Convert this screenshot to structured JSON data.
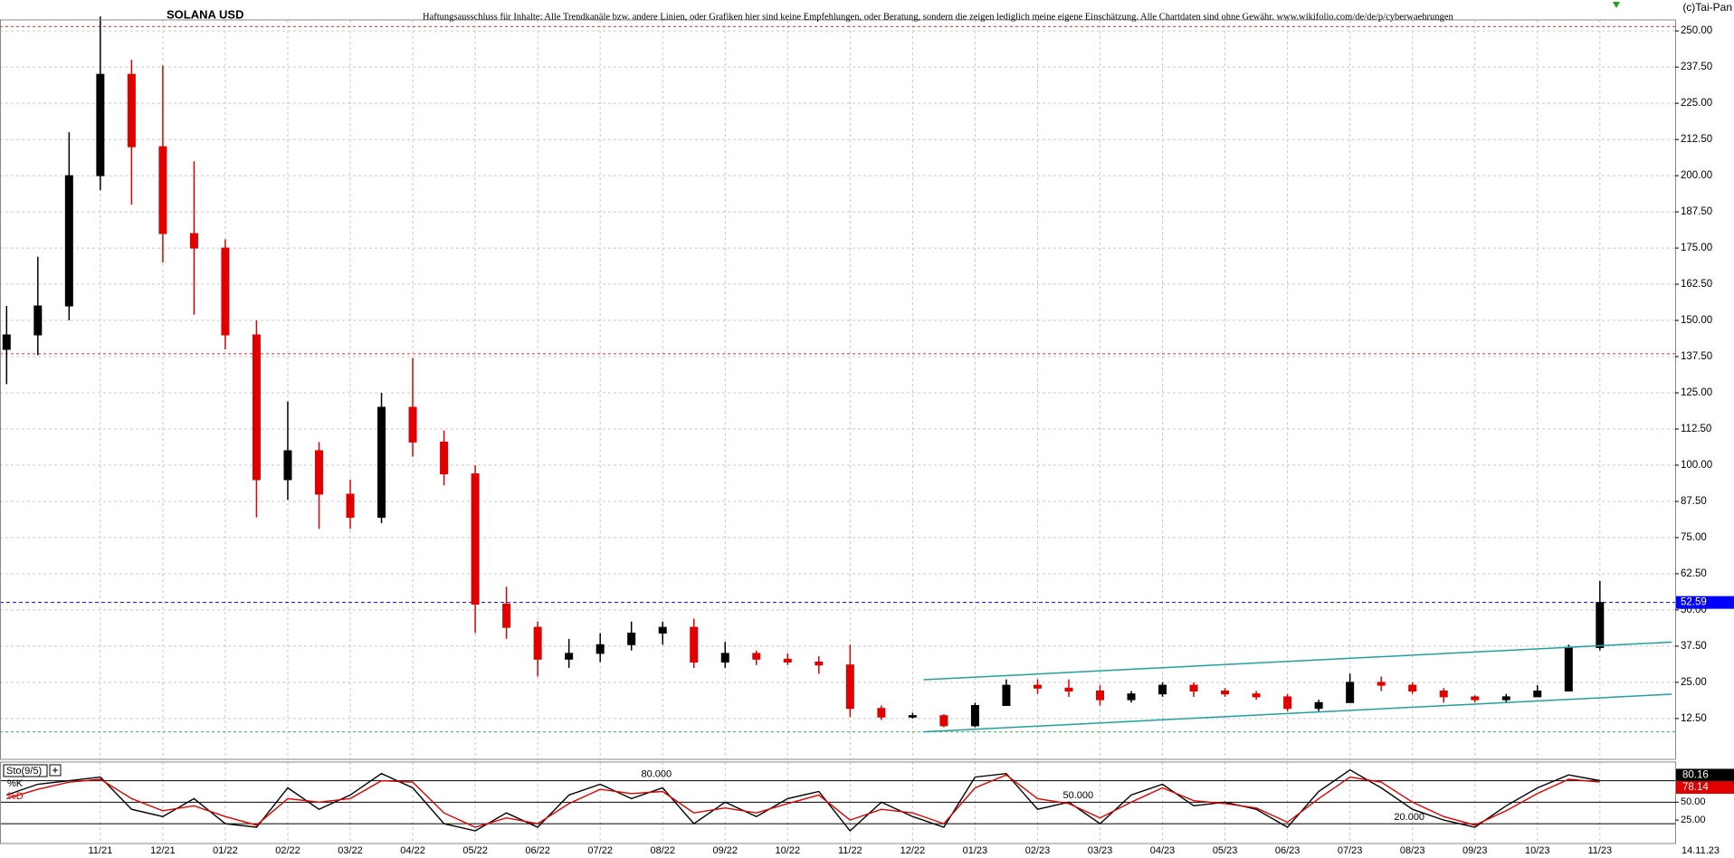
{
  "chart_data": [
    {
      "type": "candlestick",
      "title": "SOLANA USD",
      "subtitle": "Haftungsausschluss für Inhalte: Alle Trendkanäle bzw. andere Linien, oder Grafiken hier sind keine Empfehlungen, oder Beratung, sondern die zeigen lediglich meine eigene Einschätzung. Alle Chartdaten sind ohne Gewähr.  www.wikifolio.com/de/de/p/cyberwaehrungen",
      "credit": "(c)Tai-Pan",
      "last_date": "14.11.23",
      "categories": [
        null,
        null,
        null,
        "11/21",
        null,
        "12/21",
        null,
        "01/22",
        null,
        "02/22",
        null,
        "03/22",
        null,
        "04/22",
        null,
        "05/22",
        null,
        "06/22",
        null,
        "07/22",
        null,
        "08/22",
        null,
        "09/22",
        null,
        "10/22",
        null,
        "11/22",
        null,
        "12/22",
        null,
        "01/23",
        null,
        "02/23",
        null,
        "03/23",
        null,
        "04/23",
        null,
        "05/23",
        null,
        "06/23",
        null,
        "07/23",
        null,
        "08/23",
        null,
        "09/23",
        null,
        "10/23",
        null,
        "11/23"
      ],
      "open": [
        140,
        145,
        155,
        200,
        235,
        210,
        180,
        175,
        145,
        95,
        105,
        90,
        82,
        120,
        108,
        97,
        52,
        44,
        33,
        35,
        38,
        42,
        44,
        32,
        35,
        33,
        32,
        31,
        16,
        13,
        13.5,
        10,
        17,
        24,
        23,
        22,
        19,
        21,
        24,
        22,
        21,
        20,
        16,
        18,
        25,
        24,
        22,
        20,
        19,
        20,
        22,
        37
      ],
      "high": [
        155,
        172,
        215,
        255,
        240,
        238,
        205,
        178,
        150,
        122,
        108,
        95,
        125,
        137,
        112,
        100,
        58,
        46,
        40,
        42,
        46,
        46,
        47,
        39,
        36,
        35,
        34,
        38,
        17,
        14.5,
        14,
        18,
        26,
        26,
        26,
        24,
        22,
        25,
        25,
        23,
        22,
        21,
        19,
        28,
        27,
        25,
        23,
        20.5,
        21,
        24,
        38,
        60
      ],
      "low": [
        128,
        138,
        150,
        195,
        190,
        170,
        152,
        140,
        82,
        88,
        78,
        78,
        80,
        103,
        93,
        42,
        40,
        27,
        30,
        32,
        36,
        38,
        30,
        30,
        31,
        31,
        28,
        13,
        12,
        12.5,
        9.5,
        9.5,
        17,
        21,
        20,
        17,
        18,
        20,
        20,
        20,
        19,
        15,
        15,
        18,
        22,
        21,
        18,
        18,
        18,
        20,
        22,
        36
      ],
      "close": [
        145,
        155,
        200,
        235,
        210,
        180,
        175,
        145,
        95,
        105,
        90,
        82,
        120,
        108,
        97,
        52,
        44,
        33,
        35,
        38,
        42,
        44,
        32,
        35,
        33,
        32,
        31,
        16,
        13,
        13.5,
        10,
        17,
        24,
        23,
        22,
        19,
        21,
        24,
        22,
        21,
        20,
        16,
        18,
        25,
        24,
        22,
        20,
        19,
        20,
        22,
        37,
        52.59
      ],
      "up_color": "#000000",
      "down_color": "#e00000",
      "last_color": "#0000ff",
      "ylim": [
        -1.6,
        253.8
      ],
      "yticks": [
        {
          "value": 12.5,
          "label": "12.50"
        },
        {
          "value": 25,
          "label": "25.00"
        },
        {
          "value": 37.5,
          "label": "37.50"
        },
        {
          "value": 50,
          "label": "50.00"
        },
        {
          "value": 62.5,
          "label": "62.50"
        },
        {
          "value": 75,
          "label": "75.00"
        },
        {
          "value": 87.5,
          "label": "87.50"
        },
        {
          "value": 100,
          "label": "100.00"
        },
        {
          "value": 112.5,
          "label": "112.50"
        },
        {
          "value": 125,
          "label": "125.00"
        },
        {
          "value": 137.5,
          "label": "137.50"
        },
        {
          "value": 150,
          "label": "150.00"
        },
        {
          "value": 162.5,
          "label": "162.50"
        },
        {
          "value": 175,
          "label": "175.00"
        },
        {
          "value": 187.5,
          "label": "187.50"
        },
        {
          "value": 200,
          "label": "200.00"
        },
        {
          "value": 212.5,
          "label": "212.50"
        },
        {
          "value": 225,
          "label": "225.00"
        },
        {
          "value": 237.5,
          "label": "237.50"
        },
        {
          "value": 250,
          "label": "250.00"
        }
      ],
      "grid": true,
      "hlines": [
        {
          "value": 251.5,
          "color": "#e03030"
        },
        {
          "value": 138.5,
          "color": "#e03030"
        },
        {
          "value": 7.9,
          "color": "#30b050"
        }
      ],
      "trendlines": [
        {
          "x": [
            29.35,
            53.3
          ],
          "values": [
            25.9,
            38.9
          ],
          "color": "#20a0a0"
        },
        {
          "x": [
            29.35,
            53.3
          ],
          "values": [
            7.9,
            20.9
          ],
          "color": "#20a0a0"
        }
      ]
    },
    {
      "type": "stochastic",
      "title": "Sto(9/5)",
      "series": [
        {
          "name": "%K",
          "color": "#000000",
          "values": [
            60,
            75,
            80,
            85,
            40,
            30,
            55,
            20,
            15,
            70,
            40,
            60,
            90,
            70,
            20,
            10,
            35,
            15,
            60,
            75,
            55,
            70,
            20,
            50,
            30,
            55,
            65,
            10,
            50,
            30,
            15,
            85,
            90,
            40,
            50,
            20,
            60,
            75,
            45,
            50,
            40,
            15,
            65,
            95,
            70,
            40,
            25,
            15,
            45,
            70,
            88,
            80.16
          ]
        },
        {
          "name": "%D",
          "color": "#e00000",
          "values": [
            55,
            68,
            78,
            82,
            55,
            38,
            45,
            30,
            18,
            55,
            50,
            55,
            80,
            78,
            35,
            15,
            28,
            20,
            48,
            68,
            62,
            65,
            35,
            42,
            35,
            48,
            60,
            25,
            40,
            35,
            20,
            70,
            88,
            55,
            48,
            28,
            50,
            70,
            52,
            48,
            42,
            22,
            55,
            85,
            78,
            50,
            30,
            18,
            38,
            62,
            82,
            78.14
          ]
        }
      ],
      "ylim": [
        -7.7,
        106
      ],
      "yticks": [
        {
          "value": 50,
          "label": "50.00"
        },
        {
          "value": 25,
          "label": "25.00"
        }
      ],
      "levels": [
        {
          "value": 80,
          "label": "80.000",
          "x": 20.8
        },
        {
          "value": 50,
          "label": "50.000",
          "x": 34.3
        },
        {
          "value": 20,
          "label": "20.000",
          "x": 44.9
        }
      ]
    }
  ]
}
